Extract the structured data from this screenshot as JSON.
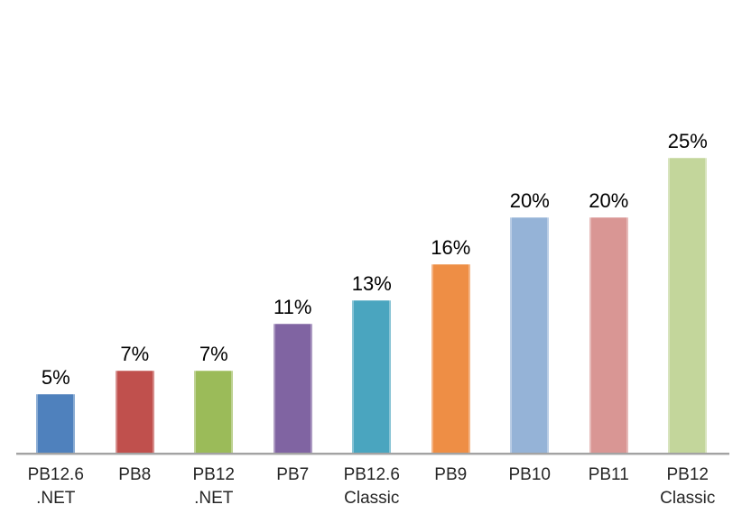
{
  "chart_data": {
    "type": "bar",
    "title": "",
    "xlabel": "",
    "ylabel": "",
    "ylim": [
      0,
      30
    ],
    "grid": false,
    "legend": "none",
    "categories": [
      "PB12.6 .NET",
      "PB8",
      "PB12 .NET",
      "PB7",
      "PB12.6 Classic",
      "PB9",
      "PB10",
      "PB11",
      "PB12 Classic"
    ],
    "values": [
      5,
      7,
      7,
      11,
      13,
      16,
      20,
      20,
      25
    ],
    "data_labels": [
      "5%",
      "7%",
      "7%",
      "11%",
      "13%",
      "16%",
      "20%",
      "20%",
      "25%"
    ],
    "bars": [
      {
        "category_lines": [
          "PB12.6",
          ".NET"
        ],
        "value": 5,
        "label": "5%",
        "color": "#4F81BD"
      },
      {
        "category_lines": [
          "PB8"
        ],
        "value": 7,
        "label": "7%",
        "color": "#C0504D"
      },
      {
        "category_lines": [
          "PB12",
          ".NET"
        ],
        "value": 7,
        "label": "7%",
        "color": "#9BBB59"
      },
      {
        "category_lines": [
          "PB7"
        ],
        "value": 11,
        "label": "11%",
        "color": "#8064A2"
      },
      {
        "category_lines": [
          "PB12.6",
          "Classic"
        ],
        "value": 13,
        "label": "13%",
        "color": "#4AA5BF"
      },
      {
        "category_lines": [
          "PB9"
        ],
        "value": 16,
        "label": "16%",
        "color": "#EE8E45"
      },
      {
        "category_lines": [
          "PB10"
        ],
        "value": 20,
        "label": "20%",
        "color": "#95B3D7"
      },
      {
        "category_lines": [
          "PB11"
        ],
        "value": 20,
        "label": "20%",
        "color": "#D99694"
      },
      {
        "category_lines": [
          "PB12",
          "Classic"
        ],
        "value": 25,
        "label": "25%",
        "color": "#C3D69B"
      }
    ]
  },
  "colors": {
    "background": "#FFFFFF",
    "axis_line": "#A3A3A3",
    "data_label_text": "#000000",
    "category_label_text": "#262626"
  }
}
